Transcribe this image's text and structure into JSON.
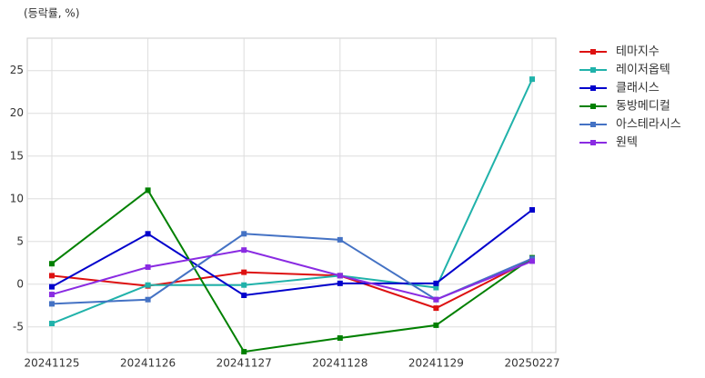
{
  "chart_data": {
    "type": "line",
    "y_label": "(등락률, %)",
    "categories": [
      "20241125",
      "20241126",
      "20241127",
      "20241128",
      "20241129",
      "20250227"
    ],
    "series": [
      {
        "name": "테마지수",
        "color": "#dd1111",
        "values": [
          1.0,
          -0.2,
          1.4,
          1.0,
          -2.8,
          2.9
        ]
      },
      {
        "name": "레이저옵텍",
        "color": "#20b2aa",
        "values": [
          -4.6,
          -0.1,
          -0.1,
          1.0,
          -0.4,
          24.0
        ]
      },
      {
        "name": "클래시스",
        "color": "#0000cc",
        "values": [
          -0.3,
          5.9,
          -1.3,
          0.1,
          0.1,
          8.7
        ]
      },
      {
        "name": "동방메디컬",
        "color": "#008000",
        "values": [
          2.4,
          11.0,
          -7.9,
          -6.3,
          -4.8,
          3.1
        ]
      },
      {
        "name": "아스테라시스",
        "color": "#4472c4",
        "values": [
          -2.3,
          -1.8,
          5.9,
          5.2,
          -1.8,
          3.0
        ]
      },
      {
        "name": "원텍",
        "color": "#8a2be2",
        "values": [
          -1.2,
          2.0,
          4.0,
          1.0,
          -1.8,
          2.7
        ]
      }
    ],
    "ylim": [
      -8,
      28.8
    ],
    "yticks": [
      -5,
      0,
      5,
      10,
      15,
      20,
      25
    ],
    "grid": true,
    "legend": "outside right"
  }
}
